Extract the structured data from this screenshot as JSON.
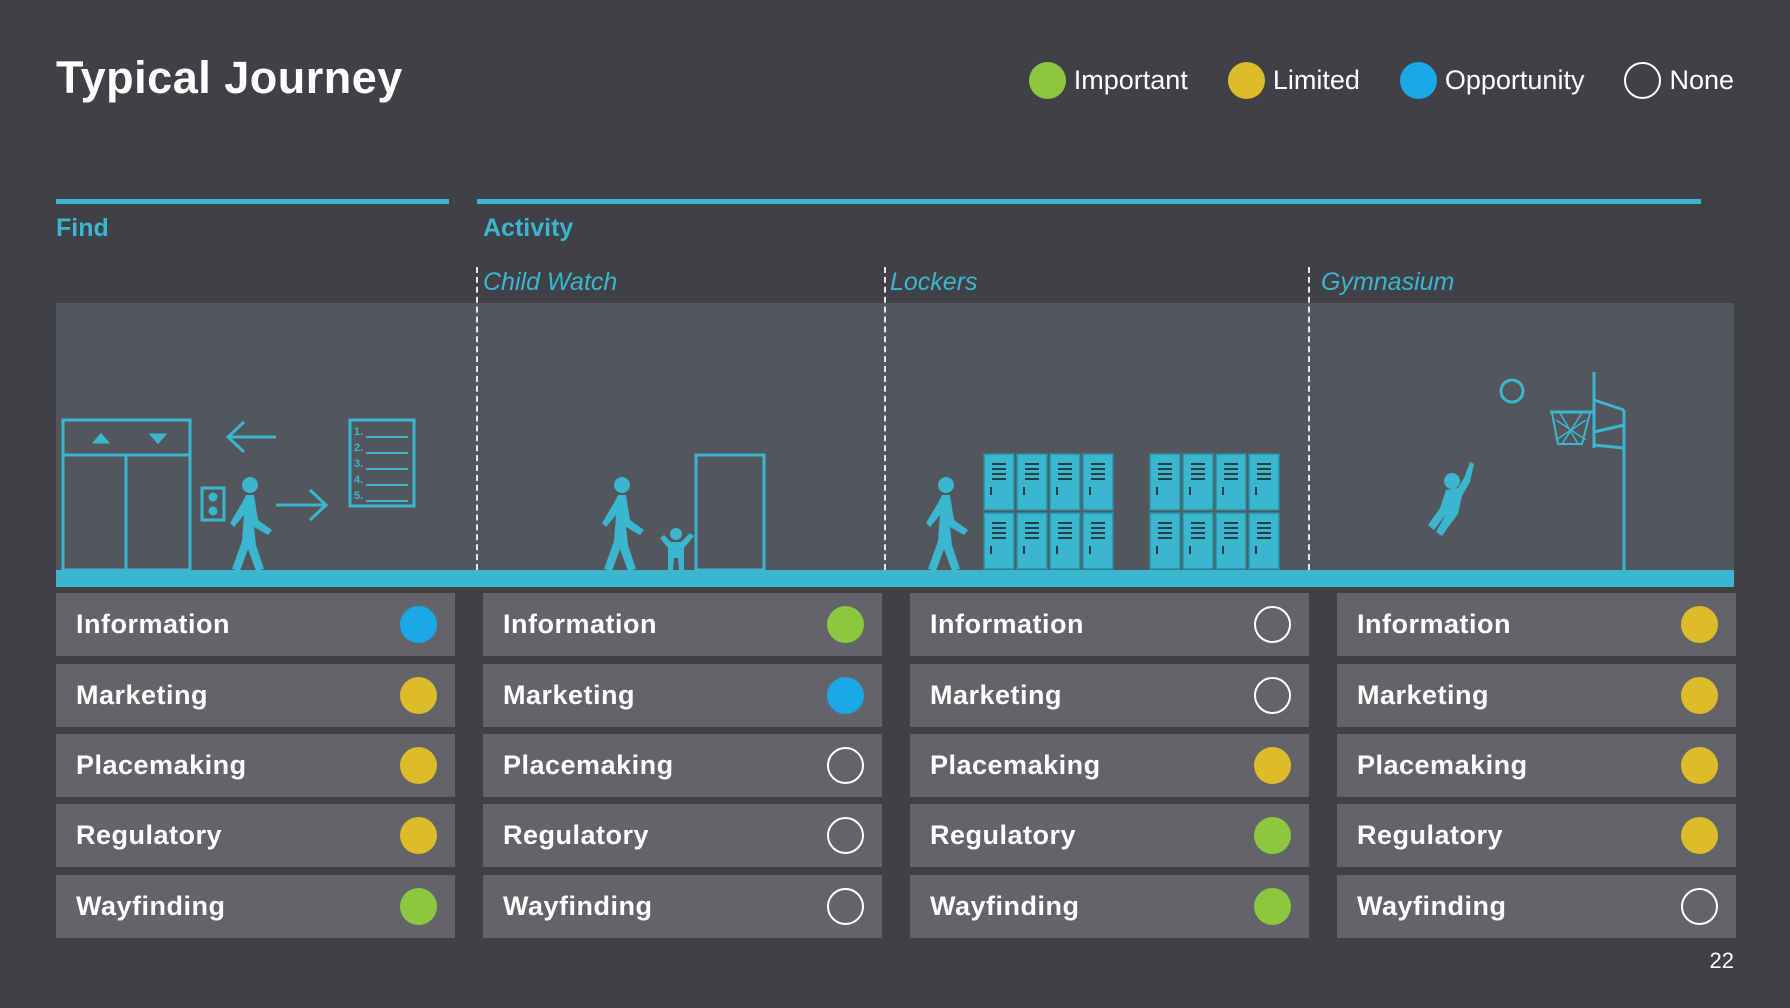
{
  "title": "Typical Journey",
  "page_number": "22",
  "colors": {
    "accent": "#3bb6cf",
    "important": "#8dc63f",
    "limited": "#dcbc2a",
    "opportunity": "#1aa8e8",
    "none": "transparent"
  },
  "legend": [
    {
      "label": "Important",
      "status": "important"
    },
    {
      "label": "Limited",
      "status": "limited"
    },
    {
      "label": "Opportunity",
      "status": "opportunity"
    },
    {
      "label": "None",
      "status": "none"
    }
  ],
  "sections": [
    {
      "label": "Find"
    },
    {
      "label": "Activity"
    }
  ],
  "columns": [
    {
      "name": "",
      "rows": [
        {
          "label": "Information",
          "status": "opportunity"
        },
        {
          "label": "Marketing",
          "status": "limited"
        },
        {
          "label": "Placemaking",
          "status": "limited"
        },
        {
          "label": "Regulatory",
          "status": "limited"
        },
        {
          "label": "Wayfinding",
          "status": "important"
        }
      ]
    },
    {
      "name": "Child Watch",
      "rows": [
        {
          "label": "Information",
          "status": "important"
        },
        {
          "label": "Marketing",
          "status": "opportunity"
        },
        {
          "label": "Placemaking",
          "status": "none"
        },
        {
          "label": "Regulatory",
          "status": "none"
        },
        {
          "label": "Wayfinding",
          "status": "none"
        }
      ]
    },
    {
      "name": "Lockers",
      "rows": [
        {
          "label": "Information",
          "status": "none"
        },
        {
          "label": "Marketing",
          "status": "none"
        },
        {
          "label": "Placemaking",
          "status": "limited"
        },
        {
          "label": "Regulatory",
          "status": "important"
        },
        {
          "label": "Wayfinding",
          "status": "important"
        }
      ]
    },
    {
      "name": "Gymnasium",
      "rows": [
        {
          "label": "Information",
          "status": "limited"
        },
        {
          "label": "Marketing",
          "status": "limited"
        },
        {
          "label": "Placemaking",
          "status": "limited"
        },
        {
          "label": "Regulatory",
          "status": "limited"
        },
        {
          "label": "Wayfinding",
          "status": "none"
        }
      ]
    }
  ],
  "directory_numbers": [
    "1.",
    "2.",
    "3.",
    "4.",
    "5."
  ],
  "icons": [
    "elevator-icon",
    "arrow-left-icon",
    "arrow-right-icon",
    "directory-sign-icon",
    "walking-person-icon",
    "door-icon",
    "child-icon",
    "locker-icon",
    "basketball-hoop-icon",
    "basketball-icon",
    "jumping-player-icon"
  ]
}
